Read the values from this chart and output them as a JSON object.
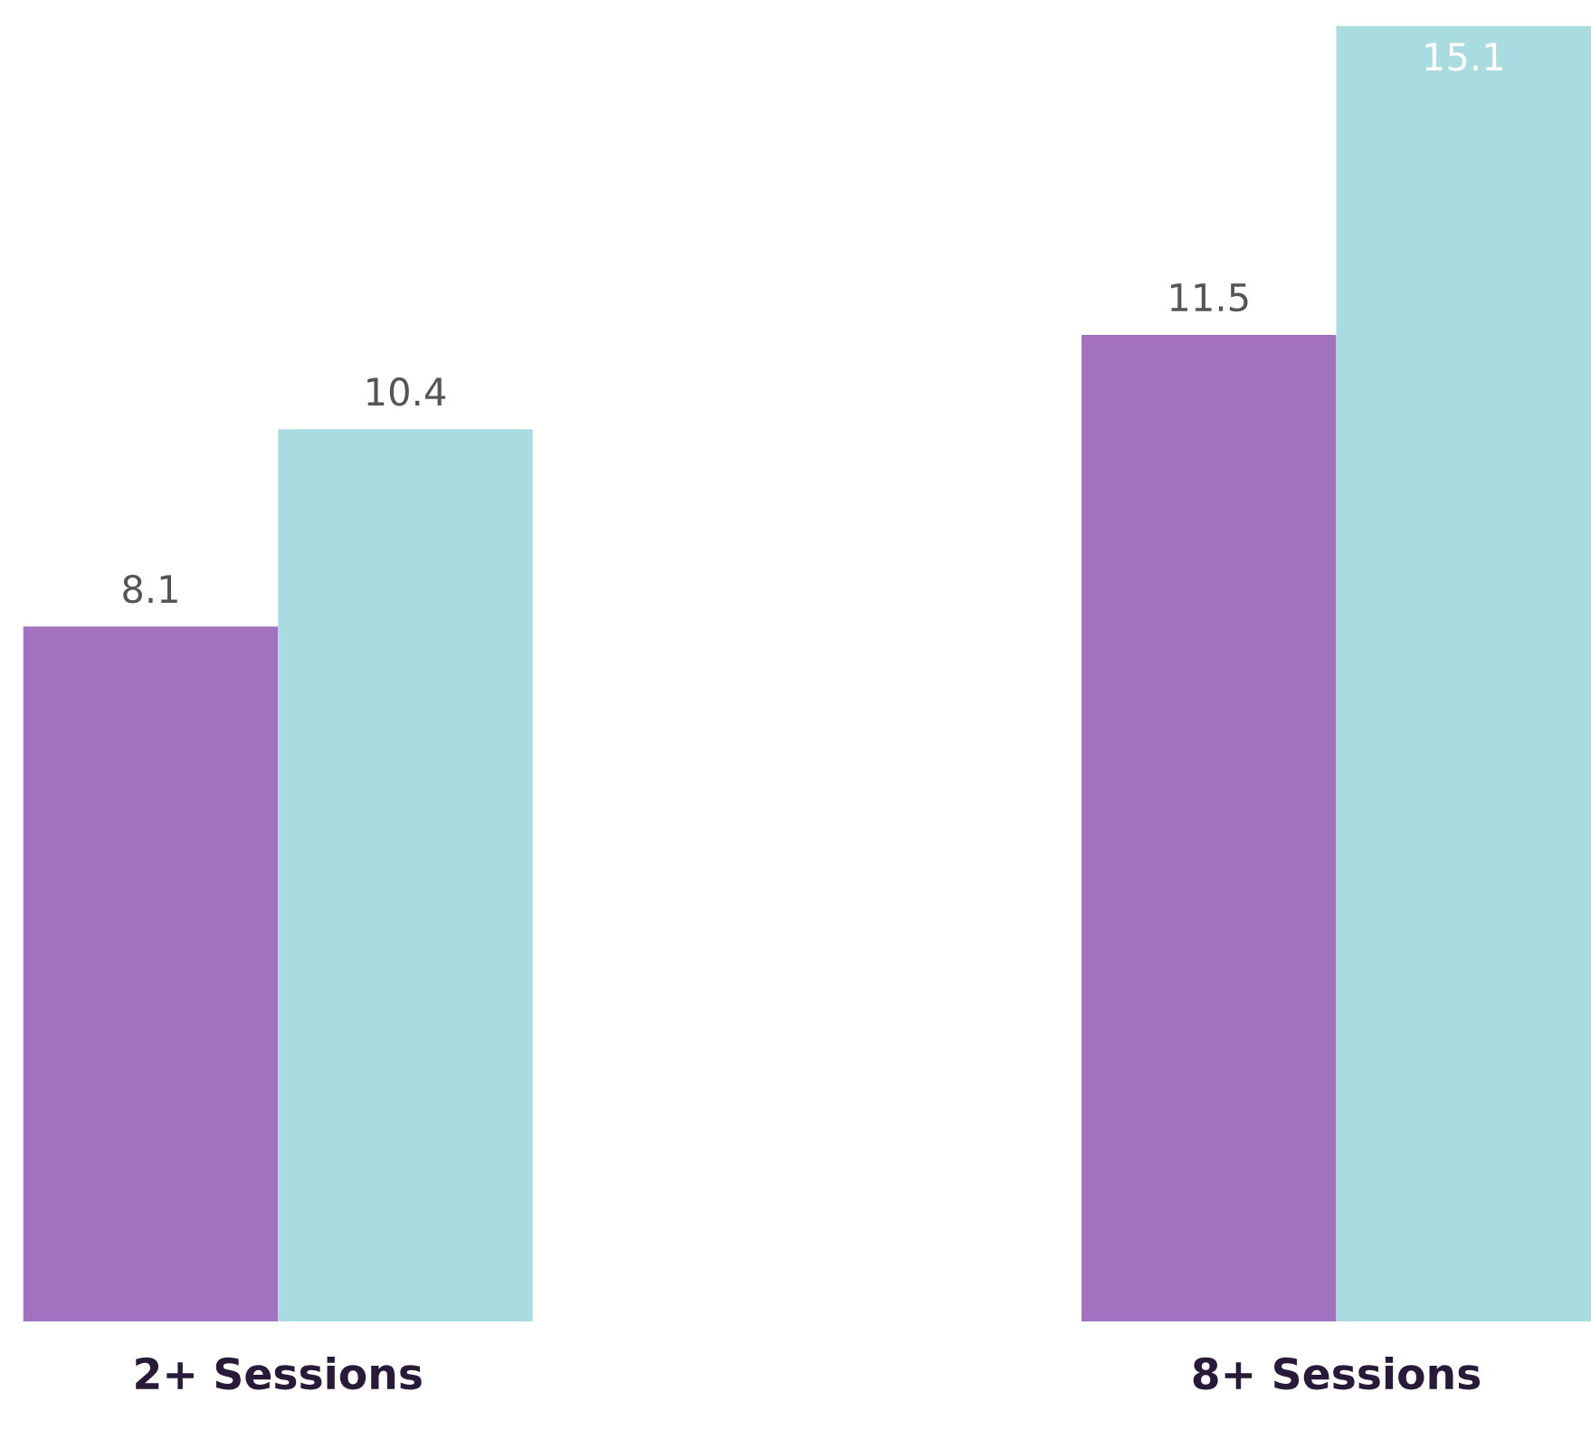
{
  "chart_data": {
    "type": "bar",
    "categories": [
      "2+ Sessions",
      "8+ Sessions"
    ],
    "series": [
      {
        "color": "#a272c0",
        "values": [
          8.1,
          11.5
        ]
      },
      {
        "color": "#a8dce0",
        "values": [
          10.4,
          15.1
        ]
      }
    ],
    "data_labels": true,
    "tick_labels": "x"
  }
}
